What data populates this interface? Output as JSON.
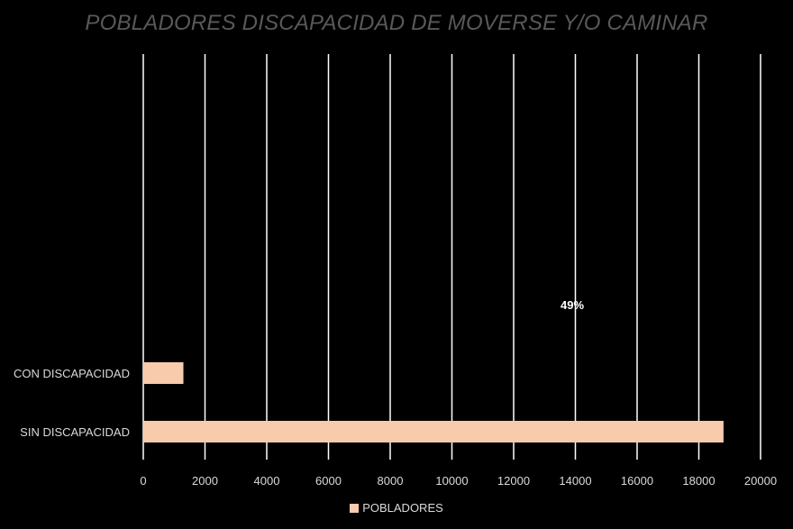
{
  "chart_data": {
    "type": "bar",
    "orientation": "horizontal",
    "title": "POBLADORES DISCAPACIDAD DE MOVERSE Y/O CAMINAR",
    "categories": [
      "CON DISCAPACIDAD",
      "SIN DISCAPACIDAD"
    ],
    "series": [
      {
        "name": "POBLADORES",
        "values": [
          1300,
          18800
        ]
      }
    ],
    "xlim": [
      0,
      20000
    ],
    "x_ticks": [
      "0",
      "2000",
      "4000",
      "6000",
      "8000",
      "10000",
      "12000",
      "14000",
      "16000",
      "18000",
      "20000"
    ],
    "grid": true,
    "legend": "bottom",
    "annotation": "49%",
    "annotation_x": 13900
  },
  "colors": {
    "background": "#000000",
    "bar": "#F8CBAD",
    "grid": "#FFFFFF",
    "axis_text": "#D9D9D9",
    "title": "#595959"
  }
}
